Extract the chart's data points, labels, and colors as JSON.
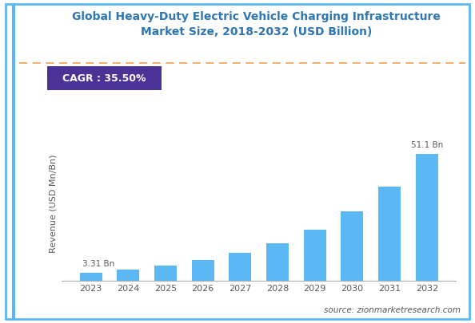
{
  "title": "Global Heavy-Duty Electric Vehicle Charging Infrastructure\nMarket Size, 2018-2032 (USD Billion)",
  "ylabel": "Revenue (USD Mn/Bn)",
  "source_text": "source: zionmarketresearch.com",
  "cagr_text": "CAGR : 35.50%",
  "years": [
    2023,
    2024,
    2025,
    2026,
    2027,
    2028,
    2029,
    2030,
    2031,
    2032
  ],
  "values": [
    3.31,
    4.5,
    6.1,
    8.3,
    11.2,
    15.2,
    20.6,
    27.9,
    37.8,
    51.1
  ],
  "bar_color": "#5BB8F5",
  "title_color": "#2E75B6",
  "ylabel_color": "#595959",
  "tick_color": "#595959",
  "cagr_bg_color": "#4B3296",
  "cagr_text_color": "#FFFFFF",
  "border_color": "#5BB8F5",
  "dashed_line_color": "#F0A050",
  "first_bar_label": "3.31 Bn",
  "last_bar_label": "51.1 Bn",
  "background_color": "#FFFFFF",
  "fig_width": 5.94,
  "fig_height": 4.05,
  "dpi": 100
}
